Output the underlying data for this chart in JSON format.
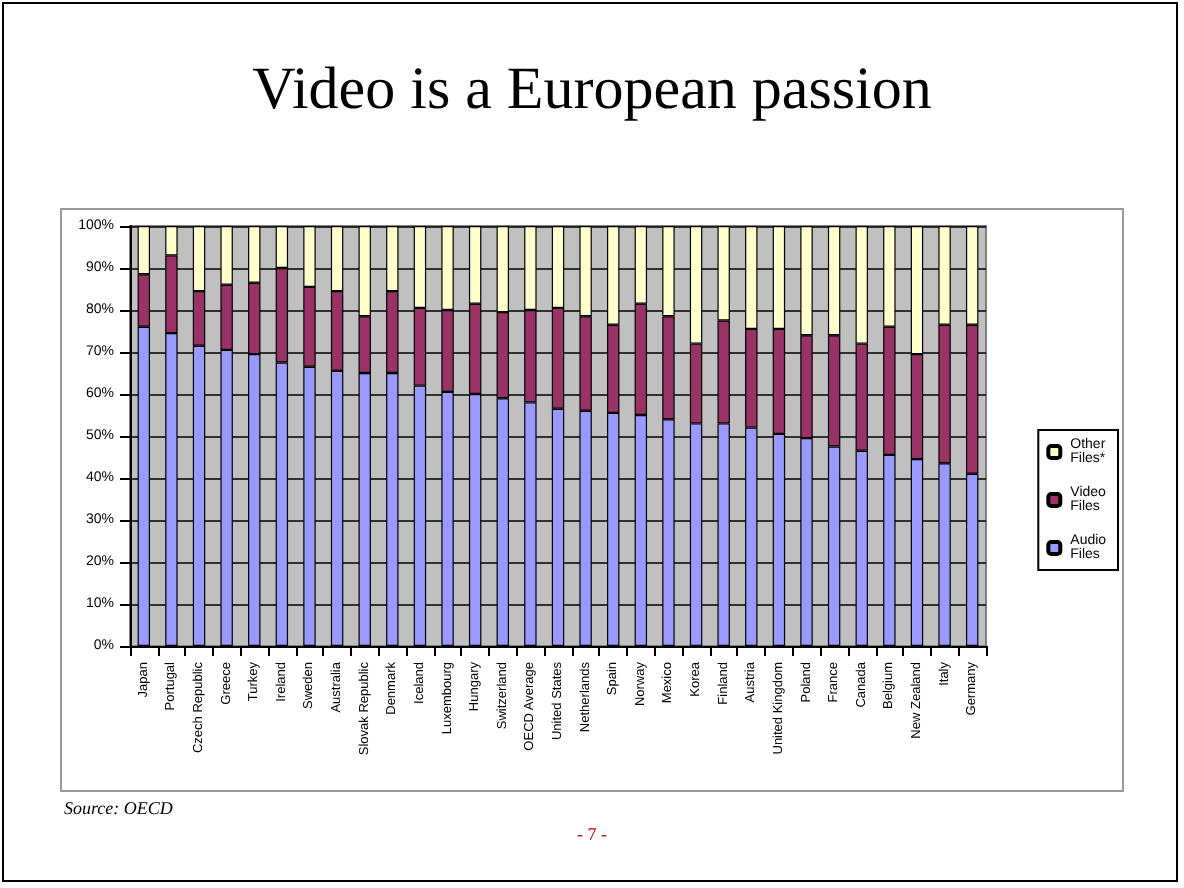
{
  "chart_data": {
    "type": "bar",
    "stacked": true,
    "title": "Video is a European passion",
    "categories": [
      "Japan",
      "Portugal",
      "Czech Republic",
      "Greece",
      "Turkey",
      "Ireland",
      "Sweden",
      "Australia",
      "Slovak Republic",
      "Denmark",
      "Iceland",
      "Luxembourg",
      "Hungary",
      "Switzerland",
      "OECD Average",
      "United States",
      "Netherlands",
      "Spain",
      "Norway",
      "Mexico",
      "Korea",
      "Finland",
      "Austria",
      "United Kingdom",
      "Poland",
      "France",
      "Canada",
      "Belgium",
      "New Zealand",
      "Italy",
      "Germany"
    ],
    "series": [
      {
        "name": "Audio Files",
        "color": "#9999ff",
        "values": [
          76,
          74.5,
          71.5,
          70.5,
          69.5,
          67.5,
          66.5,
          65.5,
          65,
          65,
          62,
          60.5,
          60,
          59,
          58,
          56.5,
          56,
          55.5,
          55,
          54,
          53,
          53,
          52,
          50.5,
          49.5,
          47.5,
          46.5,
          45.5,
          44.5,
          43.5,
          41
        ]
      },
      {
        "name": "Video Files",
        "color": "#993366",
        "values": [
          12.5,
          18.5,
          13,
          15.5,
          17,
          22.5,
          19,
          19,
          13.5,
          19.5,
          18.5,
          19.5,
          21.5,
          20.5,
          22,
          24,
          22.5,
          21,
          26.5,
          24.5,
          19,
          24.5,
          23.5,
          25,
          24.5,
          26.5,
          25.5,
          30.5,
          25,
          33,
          35.5
        ]
      },
      {
        "name": "Other Files*",
        "color": "#ffffcc",
        "values": [
          11.5,
          7,
          15.5,
          14,
          13.5,
          10,
          14.5,
          15.5,
          21.5,
          15.5,
          19.5,
          20,
          18.5,
          20.5,
          20,
          19.5,
          21.5,
          23.5,
          18.5,
          21.5,
          28,
          22.5,
          24.5,
          24.5,
          26,
          26,
          28,
          24,
          30.5,
          23.5,
          23.5
        ]
      }
    ],
    "ylim": [
      0,
      100
    ],
    "yticks": [
      {
        "value": 0,
        "label": "0%"
      },
      {
        "value": 10,
        "label": "10%"
      },
      {
        "value": 20,
        "label": "20%"
      },
      {
        "value": 30,
        "label": "30%"
      },
      {
        "value": 40,
        "label": "40%"
      },
      {
        "value": 50,
        "label": "50%"
      },
      {
        "value": 60,
        "label": "60%"
      },
      {
        "value": 70,
        "label": "70%"
      },
      {
        "value": 80,
        "label": "80%"
      },
      {
        "value": 90,
        "label": "90%"
      },
      {
        "value": 100,
        "label": "100%"
      }
    ],
    "grid": "y",
    "legend": "right",
    "annotations": [
      "Source: OECD",
      "- 7 -"
    ]
  }
}
